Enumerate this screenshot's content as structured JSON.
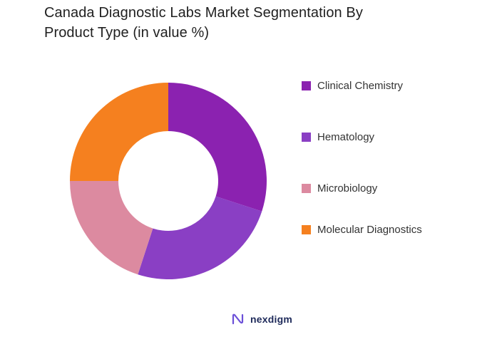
{
  "chart_data": {
    "type": "pie",
    "variant": "donut",
    "title_line1": "Canada Diagnostic Labs Market Segmentation By",
    "title_line2": "Product Type (in value %)",
    "categories": [
      "Clinical Chemistry",
      "Hematology",
      "Microbiology",
      "Molecular Diagnostics"
    ],
    "values": [
      30,
      25,
      20,
      25
    ],
    "colors": [
      "#8b22b0",
      "#8a3fc4",
      "#dc8aa0",
      "#f5801f"
    ],
    "legend_position": "right"
  },
  "brand": {
    "name": "nexdigm",
    "icon": "nexdigm-logo-icon"
  }
}
